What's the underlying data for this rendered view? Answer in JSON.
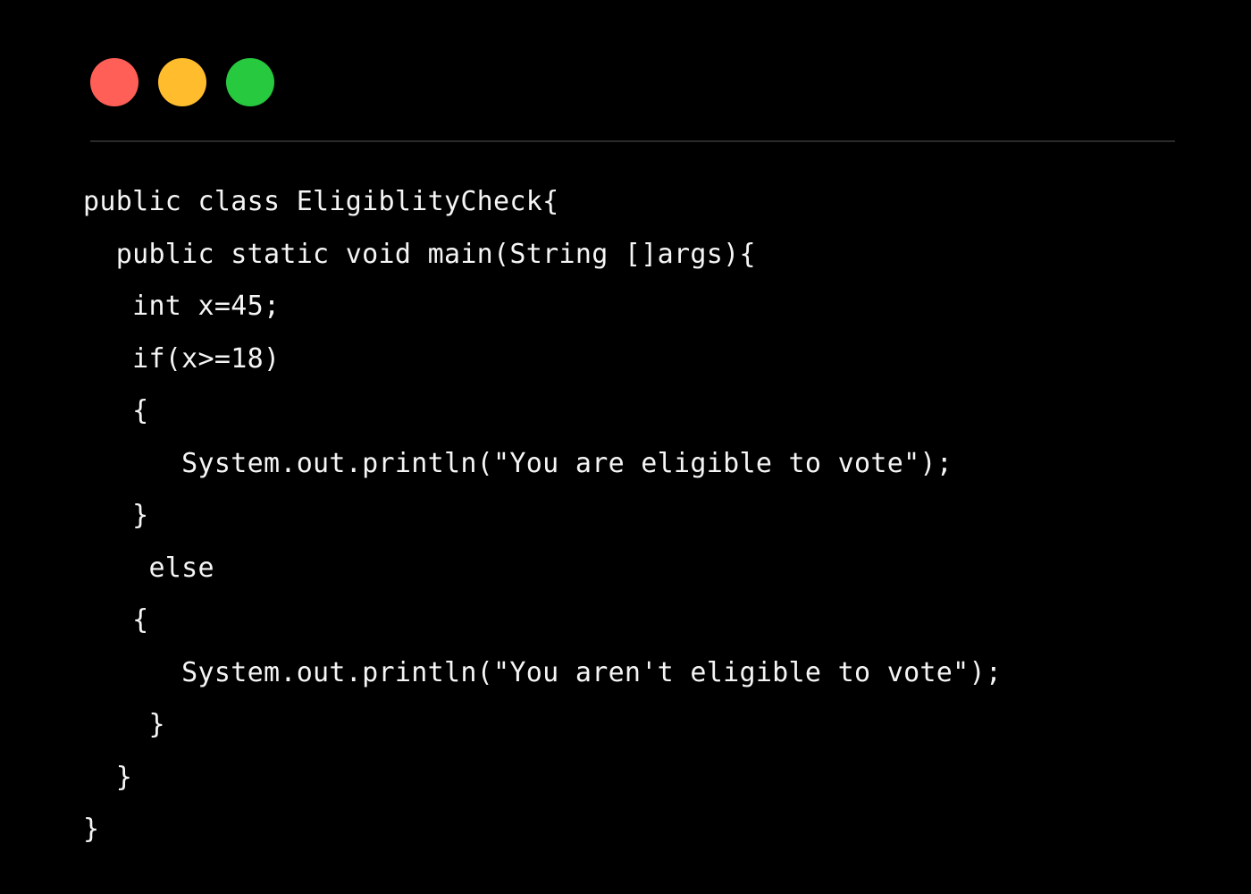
{
  "window": {
    "background_color": "#000000",
    "divider_color": "#2a2a2a",
    "traffic_lights": {
      "close_color": "#ff5f56",
      "minimize_color": "#ffbd2e",
      "maximize_color": "#27c93f",
      "diameter": 54,
      "gap": 22
    }
  },
  "code": {
    "font_family": "SF Mono",
    "font_size": 30,
    "text_color": "#f5f5f5",
    "line_height": 1.95,
    "lines": [
      "public class EligiblityCheck{",
      "  public static void main(String []args){",
      "   int x=45;",
      "   if(x>=18)",
      "   {",
      "      System.out.println(\"You are eligible to vote\");",
      "   }",
      "    else",
      "   {",
      "      System.out.println(\"You aren't eligible to vote\");",
      "    }",
      "  }",
      "}"
    ]
  }
}
